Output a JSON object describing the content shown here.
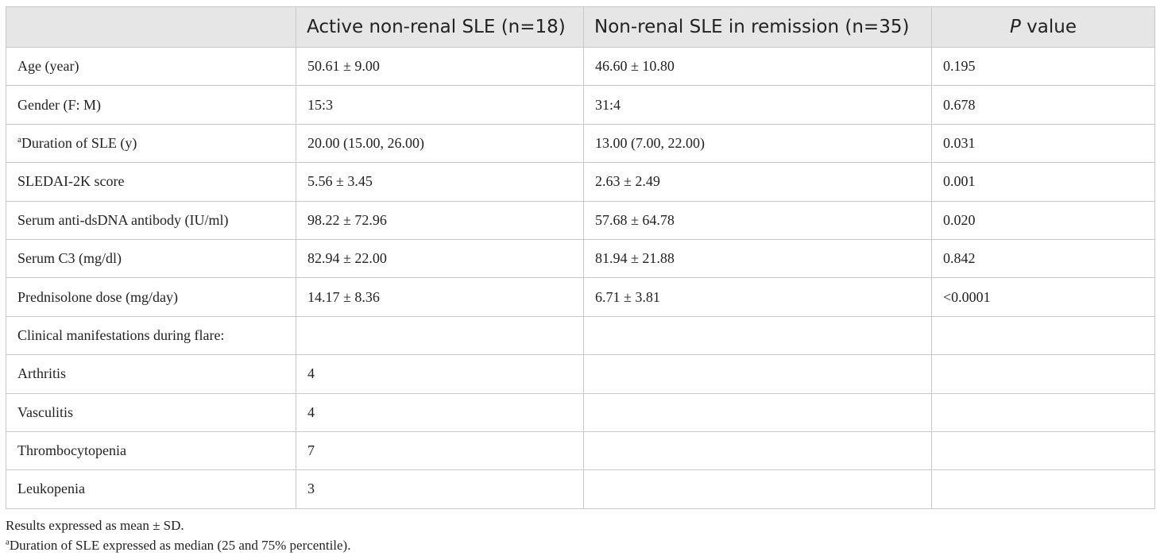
{
  "table": {
    "headers": [
      "",
      "Active non-renal SLE (n=18)",
      "Non-renal SLE in remission (n=35)",
      {
        "italic": "P",
        "rest": " value"
      }
    ],
    "rows": [
      [
        "Age (year)",
        "50.61 ± 9.00",
        "46.60 ± 10.80",
        "0.195"
      ],
      [
        "Gender (F: M)",
        "15:3",
        "31:4",
        "0.678"
      ],
      [
        {
          "sup": "a",
          "text": "Duration of SLE (y)"
        },
        "20.00 (15.00, 26.00)",
        "13.00 (7.00, 22.00)",
        "0.031"
      ],
      [
        "SLEDAI-2K score",
        "5.56 ± 3.45",
        "2.63 ± 2.49",
        "0.001"
      ],
      [
        "Serum anti-dsDNA antibody (IU/ml)",
        "98.22 ± 72.96",
        "57.68 ± 64.78",
        "0.020"
      ],
      [
        "Serum C3 (mg/dl)",
        "82.94 ± 22.00",
        "81.94 ± 21.88",
        "0.842"
      ],
      [
        "Prednisolone dose (mg/day)",
        "14.17 ± 8.36",
        "6.71 ± 3.81",
        "<0.0001"
      ],
      [
        "Clinical manifestations during flare:",
        "",
        "",
        ""
      ],
      [
        "Arthritis",
        "4",
        "",
        ""
      ],
      [
        "Vasculitis",
        "4",
        "",
        ""
      ],
      [
        "Thrombocytopenia",
        "7",
        "",
        ""
      ],
      [
        "Leukopenia",
        "3",
        "",
        ""
      ]
    ]
  },
  "footnotes": [
    {
      "sup": "",
      "text": "Results expressed as mean ± SD."
    },
    {
      "sup": "a",
      "text": "Duration of SLE expressed as median (25 and 75% percentile)."
    }
  ]
}
